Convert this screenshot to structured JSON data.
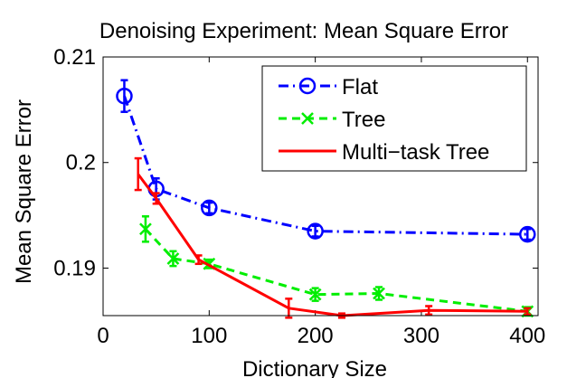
{
  "chart_data": {
    "type": "line",
    "title": "Denoising Experiment: Mean Square Error",
    "xlabel": "Dictionary Size",
    "ylabel": "Mean Square Error",
    "xlim": [
      0,
      410
    ],
    "ylim": [
      0.1855,
      0.21
    ],
    "xticks": [
      0,
      100,
      200,
      300,
      400
    ],
    "yticks": [
      0.19,
      0.2,
      0.21
    ],
    "ytick_labels": [
      "0.19",
      "0.2",
      "0.21"
    ],
    "grid": false,
    "legend_position": "top-right",
    "series": [
      {
        "name": "Flat",
        "color": "#0000ff",
        "line_style": "dash-dot",
        "marker": "circle",
        "x": [
          20,
          50,
          100,
          200,
          400
        ],
        "y": [
          0.2063,
          0.1975,
          0.1957,
          0.1935,
          0.1932
        ],
        "err": [
          0.0015,
          0.001,
          0.0005,
          0.0005,
          0.0005
        ]
      },
      {
        "name": "Tree",
        "color": "#00ee00",
        "line_style": "dashed",
        "marker": "x",
        "x": [
          40,
          66,
          100,
          200,
          260,
          400
        ],
        "y": [
          0.1937,
          0.1909,
          0.1904,
          0.1875,
          0.1876,
          0.1859
        ],
        "err": [
          0.0012,
          0.0007,
          0.0004,
          0.0006,
          0.0006,
          0.0004
        ]
      },
      {
        "name": "Multi−task Tree",
        "color": "#ff0000",
        "line_style": "solid",
        "marker": "none",
        "x": [
          33,
          50,
          90,
          175,
          225,
          307,
          400
        ],
        "y": [
          0.1989,
          0.1966,
          0.1908,
          0.1862,
          0.1855,
          0.186,
          0.1859
        ],
        "err": [
          0.0015,
          0.0005,
          0.0004,
          0.0009,
          0.0002,
          0.0004,
          0.0003
        ]
      }
    ]
  }
}
